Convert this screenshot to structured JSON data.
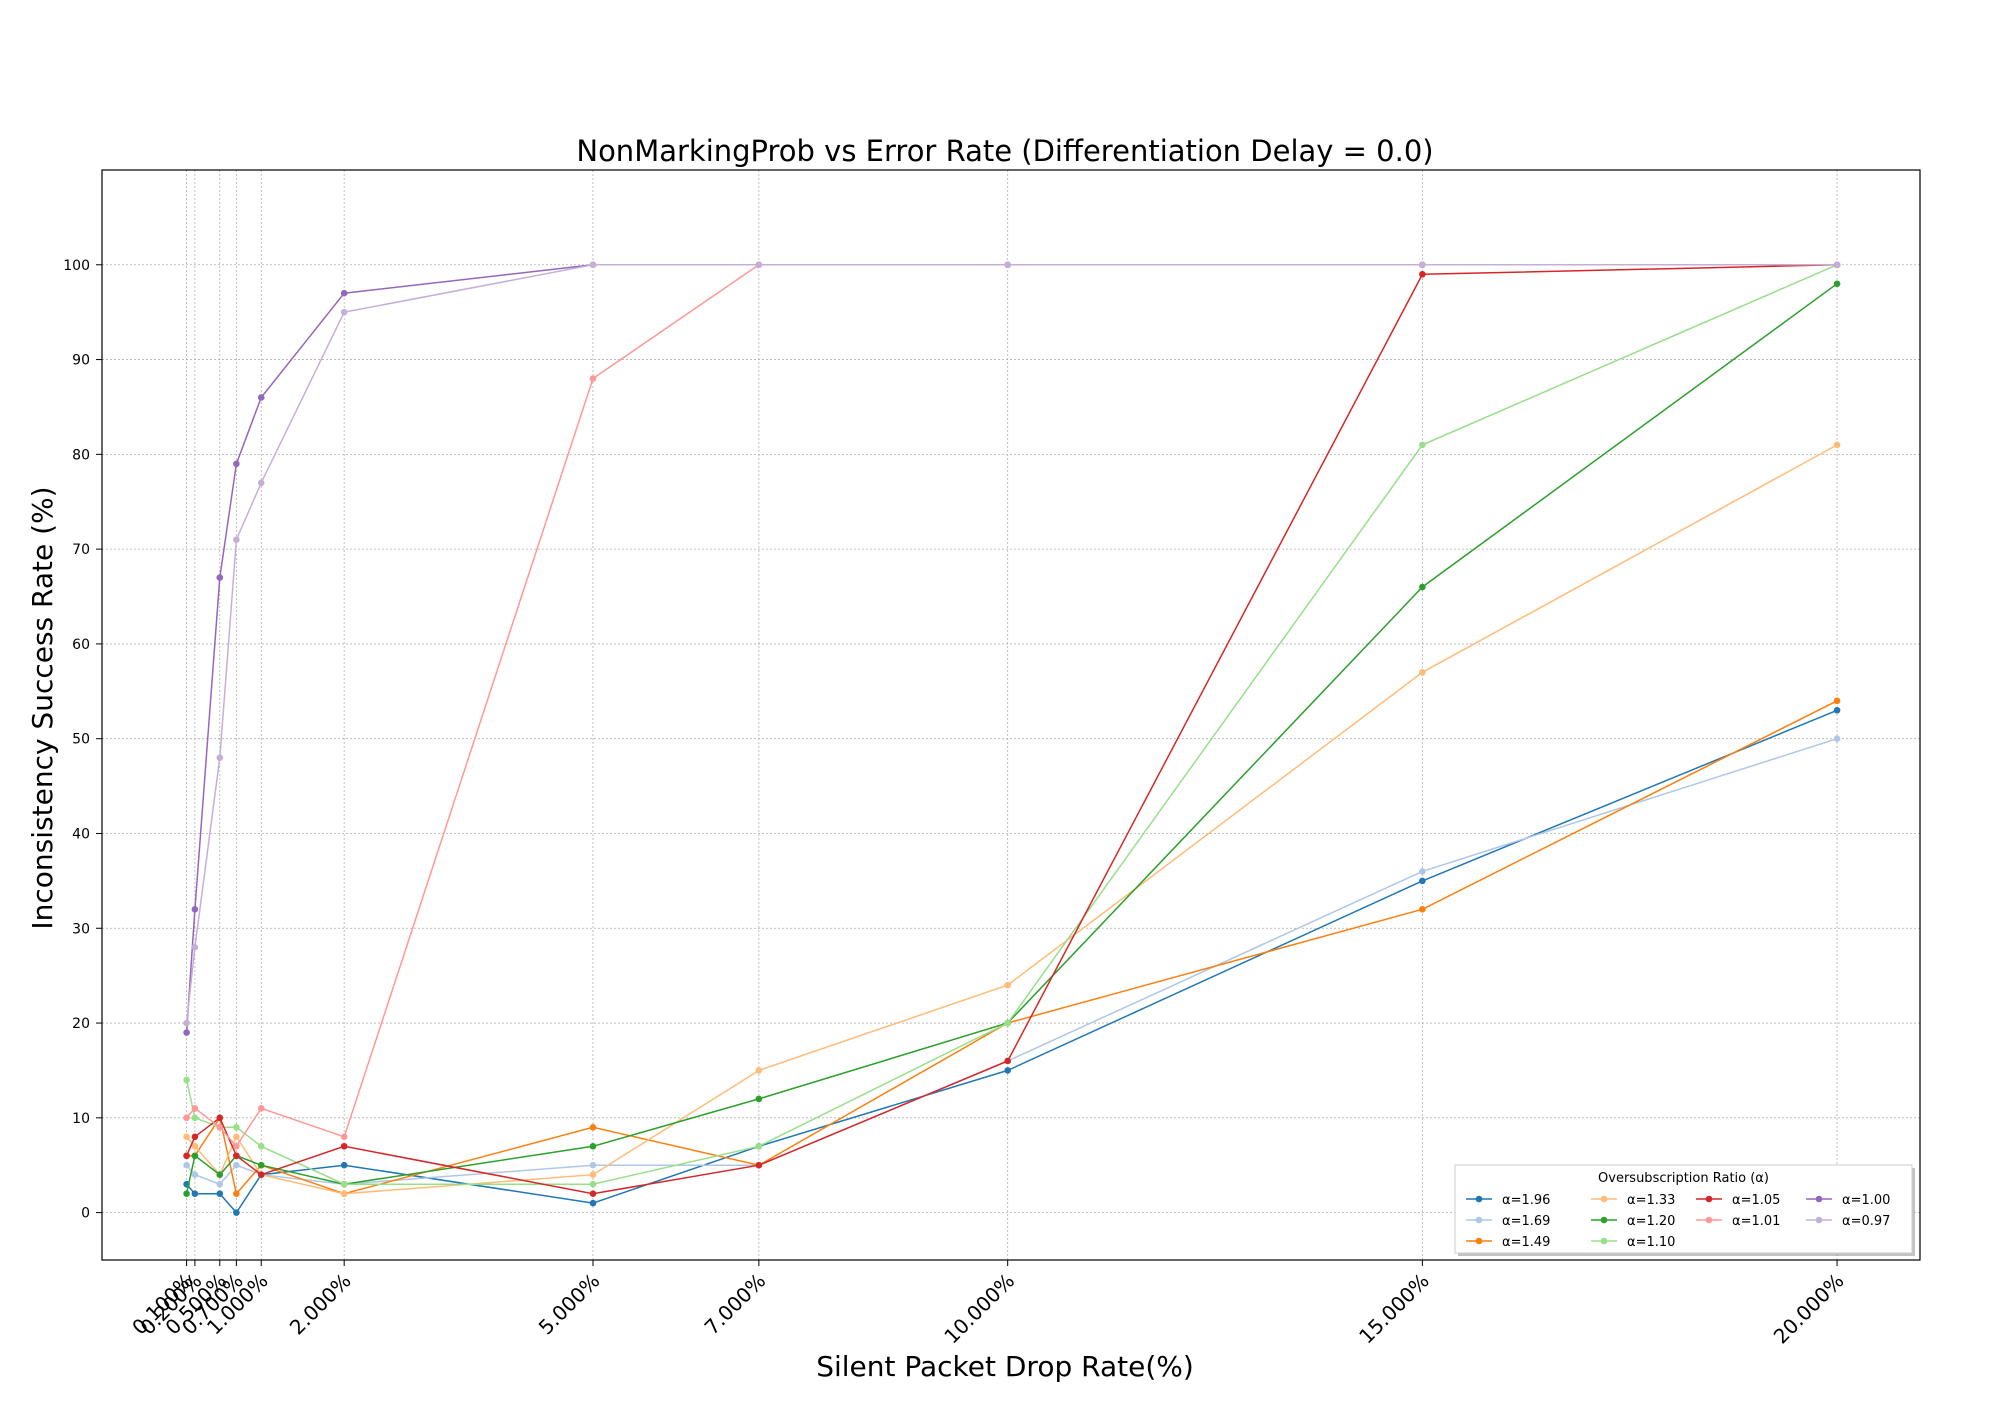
{
  "chart_data": {
    "type": "line",
    "title": "NonMarkingProb vs Error Rate (Differentiation Delay = 0.0)",
    "xlabel": "Silent Packet Drop Rate(%)",
    "ylabel": "Inconsistency Success Rate (%)",
    "x": [
      0.1,
      0.2,
      0.5,
      0.7,
      1.0,
      2.0,
      5.0,
      7.0,
      10.0,
      15.0,
      20.0
    ],
    "x_tick_labels": [
      "0.100%",
      "0.200%",
      "0.500%",
      "0.700%",
      "1.000%",
      "2.000%",
      "5.000%",
      "7.000%",
      "10.000%",
      "15.000%",
      "20.000%"
    ],
    "xlim": [
      -0.92,
      21.0
    ],
    "ylim": [
      -5,
      110
    ],
    "y_ticks": [
      0,
      10,
      20,
      30,
      40,
      50,
      60,
      70,
      80,
      90,
      100
    ],
    "grid": true,
    "legend": {
      "title": "Oversubscription Ratio (α)",
      "placement": "lower-right",
      "columns": 4
    },
    "series": [
      {
        "name": "α=1.96",
        "color": "#1f77b4",
        "values": [
          3,
          2,
          2,
          0,
          4,
          5,
          1,
          7,
          15,
          35,
          53
        ]
      },
      {
        "name": "α=1.69",
        "color": "#aec7e8",
        "values": [
          5,
          4,
          3,
          5,
          4,
          3,
          5,
          5,
          16,
          36,
          50
        ]
      },
      {
        "name": "α=1.49",
        "color": "#ff7f0e",
        "values": [
          6,
          6,
          10,
          2,
          5,
          2,
          9,
          5,
          20,
          32,
          54
        ]
      },
      {
        "name": "α=1.33",
        "color": "#ffbb78",
        "values": [
          8,
          7,
          4,
          8,
          4,
          2,
          4,
          15,
          24,
          57,
          81
        ]
      },
      {
        "name": "α=1.20",
        "color": "#2ca02c",
        "values": [
          2,
          6,
          4,
          6,
          5,
          3,
          7,
          12,
          20,
          66,
          98
        ]
      },
      {
        "name": "α=1.10",
        "color": "#98df8a",
        "values": [
          14,
          10,
          9,
          9,
          7,
          3,
          3,
          7,
          20,
          81,
          100
        ]
      },
      {
        "name": "α=1.05",
        "color": "#d62728",
        "values": [
          6,
          8,
          10,
          6,
          4,
          7,
          2,
          5,
          16,
          99,
          100
        ]
      },
      {
        "name": "α=1.01",
        "color": "#ff9896",
        "values": [
          10,
          11,
          9,
          7,
          11,
          8,
          88,
          100,
          100,
          100,
          100
        ]
      },
      {
        "name": "α=1.00",
        "color": "#9467bd",
        "values": [
          19,
          32,
          67,
          79,
          86,
          97,
          100,
          100,
          100,
          100,
          100
        ]
      },
      {
        "name": "α=0.97",
        "color": "#c5b0d5",
        "values": [
          20,
          28,
          48,
          71,
          77,
          95,
          100,
          100,
          100,
          100,
          100
        ]
      }
    ]
  }
}
